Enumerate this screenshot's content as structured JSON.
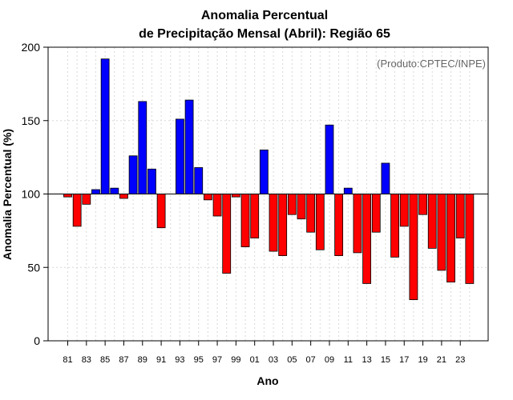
{
  "chart_data": {
    "type": "bar",
    "title_line1": "Anomalia Percentual",
    "title_line2": "de Precipitação Mensal (Abril): Região 65",
    "credit": "(Produto:CPTEC/INPE)",
    "xlabel": "Ano",
    "ylabel": "Anomalia Percentual (%)",
    "ylim": [
      0,
      200
    ],
    "yticks": [
      0,
      50,
      100,
      150,
      200
    ],
    "baseline": 100,
    "colors": {
      "above": "#0000ff",
      "below": "#ff0000",
      "edge": "#000000",
      "grid": "#d9d9d9",
      "baseline": "#000000"
    },
    "categories": [
      "81",
      "82",
      "83",
      "84",
      "85",
      "86",
      "87",
      "88",
      "89",
      "90",
      "91",
      "92",
      "93",
      "94",
      "95",
      "96",
      "97",
      "98",
      "99",
      "00",
      "01",
      "02",
      "03",
      "04",
      "05",
      "06",
      "07",
      "08",
      "09",
      "10",
      "11",
      "12",
      "13",
      "14",
      "15",
      "16",
      "17",
      "18",
      "19",
      "20",
      "21",
      "22",
      "23",
      "24"
    ],
    "xtick_labels": [
      "81",
      "83",
      "85",
      "87",
      "89",
      "91",
      "93",
      "95",
      "97",
      "99",
      "01",
      "03",
      "05",
      "07",
      "09",
      "11",
      "13",
      "15",
      "17",
      "19",
      "21",
      "23"
    ],
    "values": [
      98,
      78,
      93,
      103,
      192,
      104,
      97,
      126,
      163,
      117,
      77,
      100,
      151,
      164,
      118,
      96,
      85,
      46,
      98,
      64,
      70,
      130,
      61,
      58,
      86,
      83,
      74,
      62,
      147,
      58,
      104,
      60,
      39,
      74,
      121,
      57,
      78,
      28,
      86,
      63,
      48,
      40,
      70,
      39
    ]
  }
}
